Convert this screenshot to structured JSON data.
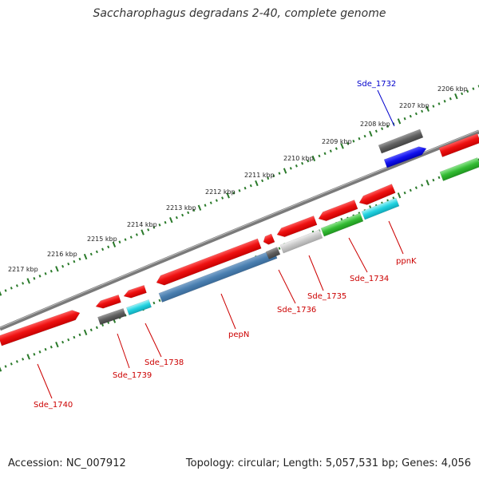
{
  "title": "Saccharophagus degradans 2-40, complete genome",
  "footer": {
    "accession": "Accession: NC_007912",
    "summary": "Topology: circular; Length: 5,057,531 bp; Genes: 4,056"
  },
  "colors": {
    "backbone": "#7a7a7a",
    "ruler_dots": "#2a7a2a",
    "gene_red": "#ee1111",
    "gene_label_red": "#cc0000",
    "gene_label_blue": "#0000cc"
  },
  "ruler_labels": [
    {
      "name": "tick-2206",
      "text": "2206 kbp"
    },
    {
      "name": "tick-2207",
      "text": "2207 kbp"
    },
    {
      "name": "tick-2208",
      "text": "2208 kbp"
    },
    {
      "name": "tick-2209",
      "text": "2209 kbp"
    },
    {
      "name": "tick-2210",
      "text": "2210 kbp"
    },
    {
      "name": "tick-2211",
      "text": "2211 kbp"
    },
    {
      "name": "tick-2212",
      "text": "2212 kbp"
    },
    {
      "name": "tick-2213",
      "text": "2213 kbp"
    },
    {
      "name": "tick-2214",
      "text": "2214 kbp"
    },
    {
      "name": "tick-2215",
      "text": "2215 kbp"
    },
    {
      "name": "tick-2216",
      "text": "2216 kbp"
    },
    {
      "name": "tick-2217",
      "text": "2217 kbp"
    }
  ],
  "gene_labels": [
    {
      "name": "label-sde-1732",
      "text": "Sde_1732",
      "color": "#0000cc"
    },
    {
      "name": "label-ppnk",
      "text": "ppnK",
      "color": "#cc0000"
    },
    {
      "name": "label-sde-1734",
      "text": "Sde_1734",
      "color": "#cc0000"
    },
    {
      "name": "label-sde-1735",
      "text": "Sde_1735",
      "color": "#cc0000"
    },
    {
      "name": "label-sde-1736",
      "text": "Sde_1736",
      "color": "#cc0000"
    },
    {
      "name": "label-pepn",
      "text": "pepN",
      "color": "#cc0000"
    },
    {
      "name": "label-sde-1738",
      "text": "Sde_1738",
      "color": "#cc0000"
    },
    {
      "name": "label-sde-1739",
      "text": "Sde_1739",
      "color": "#cc0000"
    },
    {
      "name": "label-sde-1740",
      "text": "Sde_1740",
      "color": "#cc0000"
    }
  ]
}
